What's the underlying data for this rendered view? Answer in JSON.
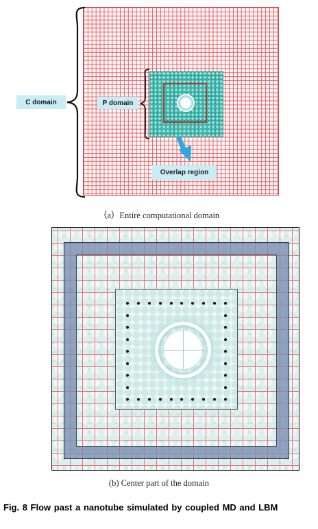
{
  "panel_a": {
    "labels": {
      "c_domain": "C domain",
      "p_domain": "P domain",
      "overlap_region": "Overlap region"
    },
    "caption": "（a）Entire computational domain"
  },
  "panel_b": {
    "caption": "(b) Center part of the domain"
  },
  "figure_caption": "Fig. 8  Flow past a nanotube simulated by coupled MD and LBM",
  "colors": {
    "mesh": "#e0636b",
    "label_background": "#c9edf4",
    "particle_region": "#3fb8b0",
    "overlap_border": "#a0432a",
    "arrow": "#29a9e0",
    "overlap_band": "#788cb0"
  }
}
